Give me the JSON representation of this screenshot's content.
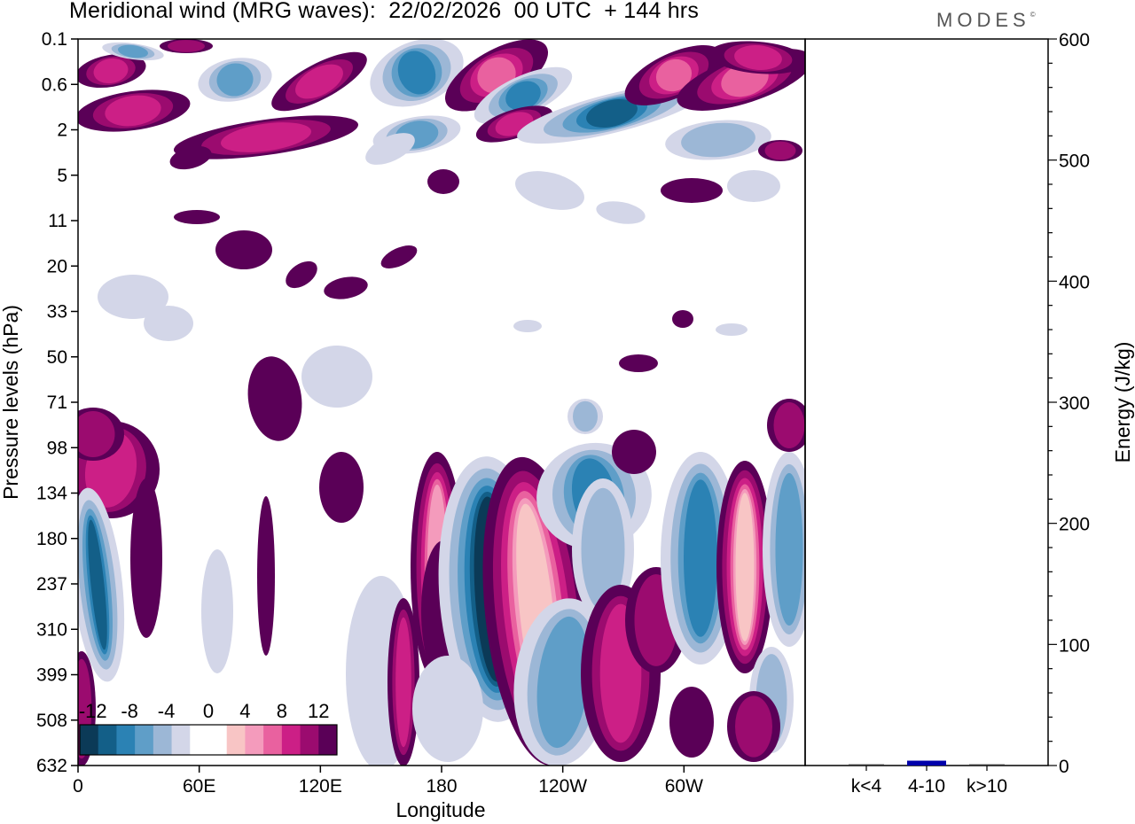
{
  "title": "Meridional wind (MRG waves):  22/02/2026  00 UTC  + 144 hrs",
  "brand": "MODES",
  "brand_mark": "©",
  "colors": {
    "neg": [
      "#0b3a57",
      "#135f88",
      "#2b82b4",
      "#5f9ec8",
      "#9cb7d6",
      "#d3d6e8"
    ],
    "pos": [
      "#f8c5c5",
      "#f49bbc",
      "#e9619f",
      "#cc1f86",
      "#9b0b6f",
      "#5a0057"
    ],
    "energy_bar": "#0000aa"
  },
  "chart_data": [
    {
      "type": "heatmap",
      "title": "Meridional wind (MRG waves)",
      "xlabel": "Longitude",
      "ylabel": "Pressure levels (hPa)",
      "x_tick_labels": [
        "0",
        "60E",
        "120E",
        "180",
        "120W",
        "60W"
      ],
      "y_tick_labels": [
        "0.1",
        "0.6",
        "2",
        "5",
        "11",
        "20",
        "33",
        "50",
        "71",
        "98",
        "134",
        "180",
        "237",
        "310",
        "399",
        "508",
        "632"
      ],
      "colorbar": {
        "levels": [
          -14,
          -12,
          -10,
          -8,
          -6,
          -4,
          -2,
          2,
          4,
          6,
          8,
          10,
          12,
          14
        ],
        "labels": [
          "-12",
          "-8",
          "-4",
          "0",
          "4",
          "8",
          "12"
        ]
      },
      "features": [
        {
          "sign": "neg",
          "intensity": 6,
          "lon": 230,
          "lev": 11.8
        },
        {
          "sign": "neg",
          "intensity": 5,
          "lon": 232,
          "lev": 10.6
        },
        {
          "sign": "pos",
          "intensity": 6,
          "lon": 254,
          "lev": 12.8
        },
        {
          "sign": "pos",
          "intensity": 5,
          "lon": 254,
          "lev": 12.0
        },
        {
          "sign": "pos",
          "intensity": 6,
          "lon": 209,
          "lev": 11.2
        },
        {
          "sign": "neg",
          "intensity": 5,
          "lon": 291,
          "lev": 10.8
        },
        {
          "sign": "pos",
          "intensity": 6,
          "lon": 328,
          "lev": 11.2
        }
      ]
    },
    {
      "type": "bar",
      "categories": [
        "k<4",
        "4-10",
        "k>10"
      ],
      "values": [
        1,
        4,
        1
      ],
      "ylabel": "Energy (J/kg)",
      "ylim": [
        0,
        600
      ],
      "y_tick_labels": [
        "0",
        "100",
        "200",
        "300",
        "400",
        "500",
        "600"
      ]
    }
  ]
}
